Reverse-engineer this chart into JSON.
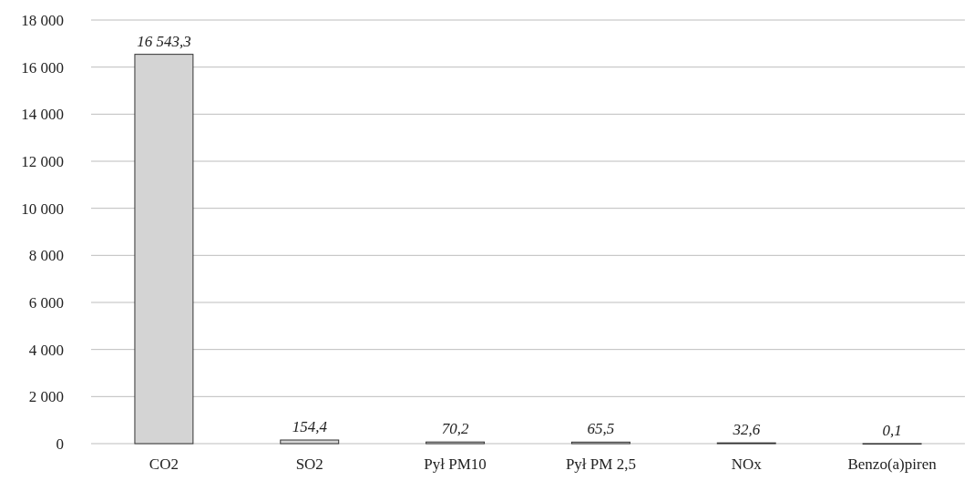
{
  "chart_data": {
    "type": "bar",
    "categories": [
      "CO2",
      "SO2",
      "Pył PM10",
      "Pył PM 2,5",
      "NOx",
      "Benzo(a)piren"
    ],
    "values": [
      16543.3,
      154.4,
      70.2,
      65.5,
      32.6,
      0.1
    ],
    "value_labels": [
      "16 543,3",
      "154,4",
      "70,2",
      "65,5",
      "32,6",
      "0,1"
    ],
    "color": "#d4d4d4",
    "ylim": [
      0,
      18000
    ],
    "yticks": [
      {
        "value": 0,
        "label": "0"
      },
      {
        "value": 2000,
        "label": "2 000"
      },
      {
        "value": 4000,
        "label": "4 000"
      },
      {
        "value": 6000,
        "label": "6 000"
      },
      {
        "value": 8000,
        "label": "8 000"
      },
      {
        "value": 10000,
        "label": "10 000"
      },
      {
        "value": 12000,
        "label": "12 000"
      },
      {
        "value": 14000,
        "label": "14 000"
      },
      {
        "value": 16000,
        "label": "16 000"
      },
      {
        "value": 18000,
        "label": "18 000"
      }
    ],
    "grid": "y"
  }
}
